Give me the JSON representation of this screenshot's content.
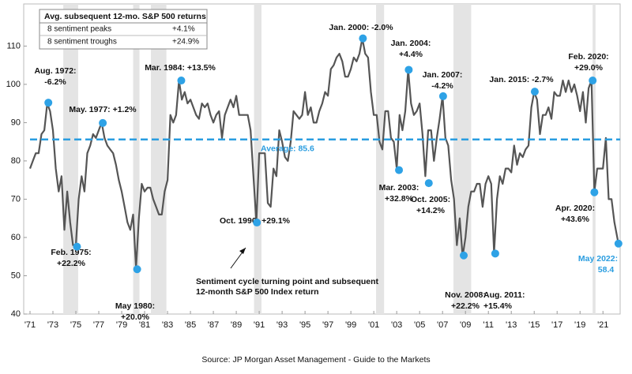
{
  "chart_data": {
    "type": "line",
    "table": {
      "title": "Avg. subsequent 12-mo. S&P 500 returns",
      "rows": [
        [
          "8 sentiment peaks",
          "+4.1%"
        ],
        [
          "8 sentiment troughs",
          "+24.9%"
        ]
      ]
    },
    "series": [
      {
        "color": "#555555",
        "x": [
          1971,
          1971.25,
          1971.5,
          1971.75,
          1972,
          1972.25,
          1972.5,
          1972.75,
          1973,
          1973.25,
          1973.5,
          1973.75,
          1974,
          1974.25,
          1974.5,
          1974.75,
          1975,
          1975.25,
          1975.5,
          1975.75,
          1976,
          1976.25,
          1976.5,
          1976.75,
          1977,
          1977.25,
          1977.5,
          1977.75,
          1978,
          1978.25,
          1978.5,
          1978.75,
          1979,
          1979.25,
          1979.5,
          1979.75,
          1980,
          1980.25,
          1980.5,
          1980.75,
          1981,
          1981.25,
          1981.5,
          1981.75,
          1982,
          1982.25,
          1982.5,
          1982.75,
          1983,
          1983.25,
          1983.5,
          1983.75,
          1984,
          1984.25,
          1984.5,
          1984.75,
          1985,
          1985.25,
          1985.5,
          1985.75,
          1986,
          1986.25,
          1986.5,
          1986.75,
          1987,
          1987.25,
          1987.5,
          1987.75,
          1988,
          1988.25,
          1988.5,
          1988.75,
          1989,
          1989.25,
          1989.5,
          1989.75,
          1990,
          1990.25,
          1990.5,
          1990.75,
          1991,
          1991.25,
          1991.5,
          1991.75,
          1992,
          1992.25,
          1992.5,
          1992.75,
          1993,
          1993.25,
          1993.5,
          1993.75,
          1994,
          1994.25,
          1994.5,
          1994.75,
          1995,
          1995.25,
          1995.5,
          1995.75,
          1996,
          1996.25,
          1996.5,
          1996.75,
          1997,
          1997.25,
          1997.5,
          1997.75,
          1998,
          1998.25,
          1998.5,
          1998.75,
          1999,
          1999.25,
          1999.5,
          1999.75,
          2000,
          2000.25,
          2000.5,
          2000.75,
          2001,
          2001.25,
          2001.5,
          2001.75,
          2002,
          2002.25,
          2002.5,
          2002.75,
          2003,
          2003.25,
          2003.5,
          2003.75,
          2004,
          2004.25,
          2004.5,
          2004.75,
          2005,
          2005.25,
          2005.5,
          2005.75,
          2006,
          2006.25,
          2006.5,
          2006.75,
          2007,
          2007.25,
          2007.5,
          2007.75,
          2008,
          2008.25,
          2008.5,
          2008.75,
          2009,
          2009.25,
          2009.5,
          2009.75,
          2010,
          2010.25,
          2010.5,
          2010.75,
          2011,
          2011.25,
          2011.5,
          2011.75,
          2012,
          2012.25,
          2012.5,
          2012.75,
          2013,
          2013.25,
          2013.5,
          2013.75,
          2014,
          2014.25,
          2014.5,
          2014.75,
          2015,
          2015.25,
          2015.5,
          2015.75,
          2016,
          2016.25,
          2016.5,
          2016.75,
          2017,
          2017.25,
          2017.5,
          2017.75,
          2018,
          2018.25,
          2018.5,
          2018.75,
          2019,
          2019.25,
          2019.5,
          2019.75,
          2020,
          2020.25,
          2020.5,
          2020.75,
          2021,
          2021.25,
          2021.5,
          2021.75,
          2022,
          2022.35
        ],
        "values": [
          78,
          80,
          82,
          82,
          87,
          88,
          95,
          93,
          88,
          78,
          72,
          76,
          62,
          72,
          64,
          58,
          58,
          70,
          76,
          72,
          82,
          84,
          87,
          86,
          88,
          90,
          86,
          84,
          83,
          82,
          79,
          75,
          72,
          68,
          64,
          62,
          66,
          52,
          65,
          74,
          72,
          73,
          73,
          70,
          68,
          66,
          66,
          72,
          75,
          92,
          90,
          92,
          101,
          96,
          98,
          95,
          96,
          94,
          92,
          91,
          95,
          94,
          95,
          92,
          90,
          92,
          93,
          86,
          92,
          94,
          96,
          94,
          97,
          92,
          92,
          92,
          92,
          88,
          76,
          64,
          82,
          82,
          82,
          69,
          68,
          78,
          76,
          88,
          85,
          81,
          80,
          85,
          93,
          92,
          91,
          92,
          98,
          92,
          94,
          90,
          90,
          93,
          95,
          98,
          97,
          104,
          105,
          107,
          108,
          106,
          102,
          102,
          104,
          107,
          106,
          108,
          112,
          108,
          107,
          98,
          92,
          92,
          85,
          83,
          93,
          93,
          86,
          85,
          78,
          92,
          88,
          93,
          103.8,
          95,
          92,
          93,
          95,
          87,
          76,
          88,
          88,
          80,
          86,
          91,
          97,
          86,
          84,
          75,
          70,
          58,
          65,
          55,
          60,
          68,
          72,
          72,
          74,
          74,
          68,
          74,
          76,
          74,
          56,
          70,
          76,
          74,
          78,
          78,
          77,
          84,
          79,
          82,
          81,
          83,
          84,
          94,
          98,
          96,
          87,
          92,
          92,
          94,
          91,
          98,
          97,
          97,
          101,
          98,
          101,
          98,
          100,
          97,
          93,
          98,
          90,
          99,
          101,
          72,
          78,
          78,
          78,
          86,
          70,
          70,
          64,
          58.4
        ]
      }
    ],
    "recessions": [
      [
        1973.9,
        1975.2
      ],
      [
        1980.0,
        1980.55
      ],
      [
        1981.55,
        1982.9
      ],
      [
        1990.55,
        1991.2
      ],
      [
        2001.2,
        2001.9
      ],
      [
        2007.95,
        2009.5
      ],
      [
        2020.1,
        2020.35
      ]
    ],
    "average": {
      "value": 85.6,
      "label": "Average: 85.6"
    },
    "marker_color": "#2ea2e6",
    "annotations": [
      {
        "x": 1972.6,
        "value": 95.2,
        "label": [
          "Aug. 1972:",
          "-6.2%"
        ]
      },
      {
        "x": 1975.1,
        "value": 57.6,
        "label": [
          "Feb. 1975:",
          "+22.2%"
        ]
      },
      {
        "x": 1977.35,
        "value": 89.9,
        "label": [
          "May. 1977: +1.2%"
        ]
      },
      {
        "x": 1980.35,
        "value": 51.7,
        "label": [
          "May 1980:",
          "+20.0%"
        ]
      },
      {
        "x": 1984.2,
        "value": 101.0,
        "label": [
          "Mar. 1984: +13.5%"
        ]
      },
      {
        "x": 1990.8,
        "value": 63.9,
        "label": [
          "Oct. 1990: +29.1%"
        ]
      },
      {
        "x": 2000.05,
        "value": 112.0,
        "label": [
          "Jan. 2000: -2.0%"
        ]
      },
      {
        "x": 2003.2,
        "value": 77.6,
        "label": [
          "Mar. 2003:",
          "+32.8%"
        ]
      },
      {
        "x": 2004.05,
        "value": 103.8,
        "label": [
          "Jan. 2004:",
          "+4.4%"
        ]
      },
      {
        "x": 2005.8,
        "value": 74.2,
        "label": [
          "Oct. 2005:",
          "+14.2%"
        ]
      },
      {
        "x": 2007.05,
        "value": 96.9,
        "label": [
          "Jan. 2007:",
          "-4.2%"
        ]
      },
      {
        "x": 2008.85,
        "value": 55.3,
        "label": [
          "Nov. 2008:",
          "+22.2%"
        ]
      },
      {
        "x": 2011.6,
        "value": 55.8,
        "label": [
          "Aug. 2011:",
          "+15.4%"
        ]
      },
      {
        "x": 2015.05,
        "value": 98.1,
        "label": [
          "Jan. 2015: -2.7%"
        ]
      },
      {
        "x": 2020.1,
        "value": 101.0,
        "label": [
          "Feb. 2020:",
          "+29.0%"
        ]
      },
      {
        "x": 2020.25,
        "value": 71.8,
        "label": [
          "Apr. 2020:",
          "+43.6%"
        ]
      },
      {
        "x": 2022.35,
        "value": 58.4,
        "label": [
          "May 2022:"
        ]
      }
    ],
    "note": [
      "Sentiment cycle turning point and subsequent",
      "12-month S&P 500 Index return"
    ],
    "source": "Source:  JP Morgan Asset Management - Guide to the Markets",
    "xlim": [
      1971,
      2022.5
    ],
    "ylim": [
      40,
      121
    ],
    "yticks": [
      40,
      50,
      60,
      70,
      80,
      90,
      100,
      110
    ],
    "xticks": [
      {
        "value": 1971,
        "label": "'71"
      },
      {
        "value": 1973,
        "label": "'73"
      },
      {
        "value": 1975,
        "label": "'75"
      },
      {
        "value": 1977,
        "label": "'77"
      },
      {
        "value": 1979,
        "label": "'79"
      },
      {
        "value": 1981,
        "label": "'81"
      },
      {
        "value": 1983,
        "label": "'83"
      },
      {
        "value": 1985,
        "label": "'85"
      },
      {
        "value": 1987,
        "label": "'87"
      },
      {
        "value": 1989,
        "label": "'89"
      },
      {
        "value": 1991,
        "label": "'91"
      },
      {
        "value": 1993,
        "label": "'93"
      },
      {
        "value": 1995,
        "label": "'95"
      },
      {
        "value": 1997,
        "label": "'97"
      },
      {
        "value": 1999,
        "label": "'99"
      },
      {
        "value": 2001,
        "label": "'01"
      },
      {
        "value": 2003,
        "label": "'03"
      },
      {
        "value": 2005,
        "label": "'05"
      },
      {
        "value": 2007,
        "label": "'07"
      },
      {
        "value": 2009,
        "label": "'09"
      },
      {
        "value": 2011,
        "label": "'11"
      },
      {
        "value": 2013,
        "label": "'13"
      },
      {
        "value": 2015,
        "label": "'15"
      },
      {
        "value": 2017,
        "label": "'17"
      },
      {
        "value": 2019,
        "label": "'19"
      },
      {
        "value": 2021,
        "label": "'21"
      }
    ]
  }
}
